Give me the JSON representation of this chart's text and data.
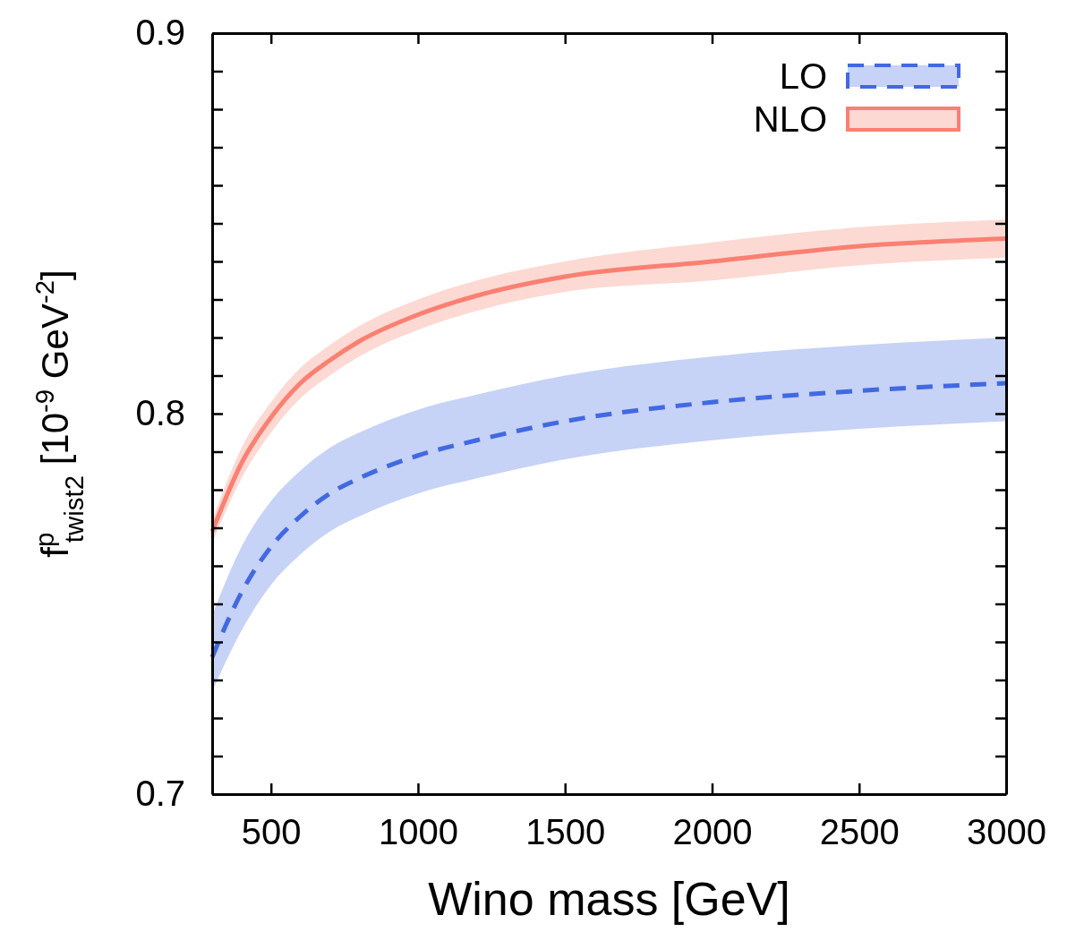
{
  "chart_data": {
    "type": "line",
    "xlabel": "Wino mass [GeV]",
    "ylabel": "f$^{p}$$_{twist2}$  [10$^{-9}$ GeV$^{-2}$]",
    "xlim": [
      300,
      3000
    ],
    "ylim": [
      0.7,
      0.9
    ],
    "xticks": [
      500,
      1000,
      1500,
      2000,
      2500,
      3000
    ],
    "yticks": [
      0.7,
      {
        "value": 0.71,
        "label": null
      },
      {
        "value": 0.72,
        "label": null
      },
      {
        "value": 0.73,
        "label": null
      },
      {
        "value": 0.74,
        "label": null
      },
      {
        "value": 0.75,
        "label": null
      },
      {
        "value": 0.76,
        "label": null
      },
      {
        "value": 0.77,
        "label": null
      },
      {
        "value": 0.78,
        "label": null
      },
      {
        "value": 0.79,
        "label": null
      },
      0.8,
      {
        "value": 0.81,
        "label": null
      },
      {
        "value": 0.82,
        "label": null
      },
      {
        "value": 0.83,
        "label": null
      },
      {
        "value": 0.84,
        "label": null
      },
      {
        "value": 0.85,
        "label": null
      },
      {
        "value": 0.86,
        "label": null
      },
      {
        "value": 0.87,
        "label": null
      },
      {
        "value": 0.88,
        "label": null
      },
      {
        "value": 0.89,
        "label": null
      },
      0.9
    ],
    "legend": "top right",
    "series": [
      {
        "name": "LO",
        "color": "#4169e1",
        "line_style": "dashed",
        "x": [
          300,
          400,
          500,
          600,
          700,
          800,
          1000,
          1200,
          1500,
          2000,
          2500,
          3000
        ],
        "values": [
          0.736,
          0.753,
          0.765,
          0.773,
          0.779,
          0.783,
          0.789,
          0.793,
          0.798,
          0.803,
          0.806,
          0.808
        ],
        "lower": [
          0.727,
          0.743,
          0.755,
          0.763,
          0.769,
          0.773,
          0.779,
          0.783,
          0.788,
          0.793,
          0.796,
          0.798
        ],
        "upper": [
          0.747,
          0.765,
          0.777,
          0.785,
          0.791,
          0.795,
          0.801,
          0.805,
          0.81,
          0.815,
          0.818,
          0.82
        ]
      },
      {
        "name": "NLO",
        "color": "#fa8072",
        "line_style": "solid",
        "x": [
          300,
          400,
          500,
          600,
          700,
          800,
          1000,
          1200,
          1500,
          2000,
          2500,
          3000
        ],
        "values": [
          0.769,
          0.787,
          0.799,
          0.808,
          0.814,
          0.819,
          0.826,
          0.831,
          0.836,
          0.84,
          0.844,
          0.846
        ],
        "lower": [
          0.766,
          0.783,
          0.795,
          0.804,
          0.81,
          0.815,
          0.822,
          0.827,
          0.832,
          0.835,
          0.839,
          0.841
        ],
        "upper": [
          0.772,
          0.791,
          0.803,
          0.812,
          0.818,
          0.823,
          0.83,
          0.835,
          0.84,
          0.845,
          0.849,
          0.851
        ]
      }
    ]
  }
}
